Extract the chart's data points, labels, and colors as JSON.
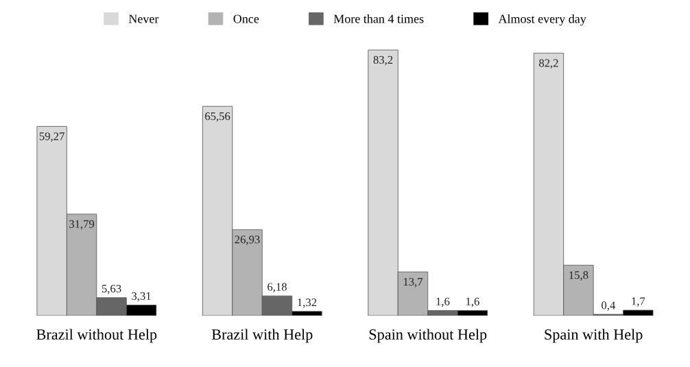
{
  "chart_data": {
    "type": "bar",
    "categories": [
      "Brazil without Help",
      "Brazil with Help",
      "Spain without Help",
      "Spain with Help"
    ],
    "legend": "top",
    "series": [
      {
        "name": "Never",
        "color": "#d9d9d9",
        "values": [
          59.27,
          65.56,
          83.2,
          82.2
        ],
        "value_labels": [
          "59,27",
          "65,56",
          "83,2",
          "82,2"
        ]
      },
      {
        "name": "Once",
        "color": "#b3b3b3",
        "values": [
          31.79,
          26.93,
          13.7,
          15.8
        ],
        "value_labels": [
          "31,79",
          "26,93",
          "13,7",
          "15,8"
        ]
      },
      {
        "name": "More than 4 times",
        "color": "#666666",
        "values": [
          5.63,
          6.18,
          1.6,
          0.4
        ],
        "value_labels": [
          "5,63",
          "6,18",
          "1,6",
          "0,4"
        ]
      },
      {
        "name": "Almost every day",
        "color": "#000000",
        "values": [
          3.31,
          1.32,
          1.6,
          1.7
        ],
        "value_labels": [
          "3,31",
          "1,32",
          "1,6",
          "1,7"
        ]
      }
    ]
  }
}
